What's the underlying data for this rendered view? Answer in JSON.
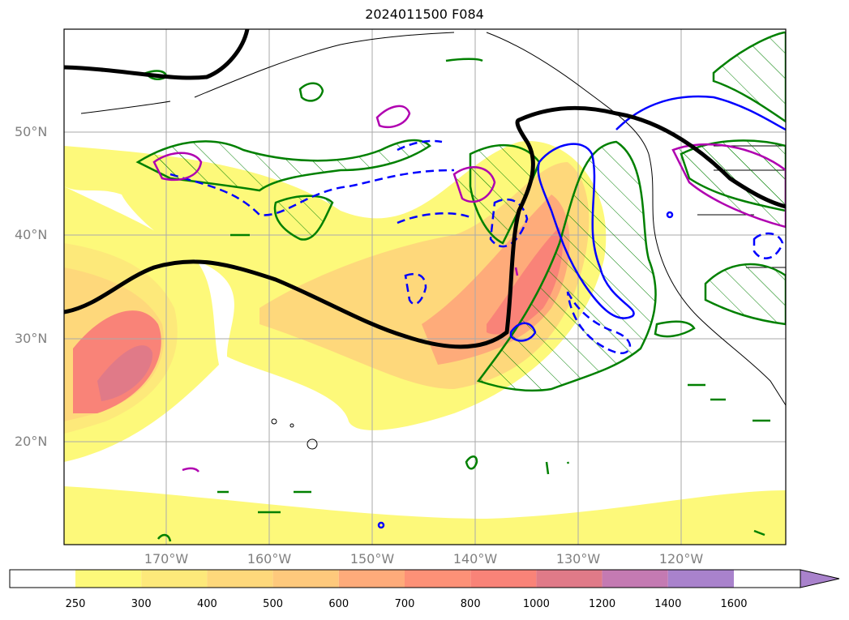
{
  "title": "2024011500 F084",
  "lat_labels": [
    "50°N",
    "40°N",
    "30°N",
    "20°N"
  ],
  "lon_labels": [
    "170°W",
    "160°W",
    "150°W",
    "140°W",
    "130°W",
    "120°W"
  ],
  "colorbar": {
    "ticks": [
      "250",
      "300",
      "400",
      "500",
      "600",
      "700",
      "800",
      "1000",
      "1200",
      "1400",
      "1600"
    ],
    "colors": [
      "#ffffff",
      "#fdf97a",
      "#fde97a",
      "#fed87b",
      "#fec97c",
      "#feab7a",
      "#fd9177",
      "#f98378",
      "#e07a88",
      "#c47ab2",
      "#a982cc"
    ],
    "extend": "max"
  },
  "contour_colors": {
    "jet_line": "#000000",
    "green_hatched": "#008000",
    "blue": "#0000ff",
    "magenta": "#b000b0"
  }
}
